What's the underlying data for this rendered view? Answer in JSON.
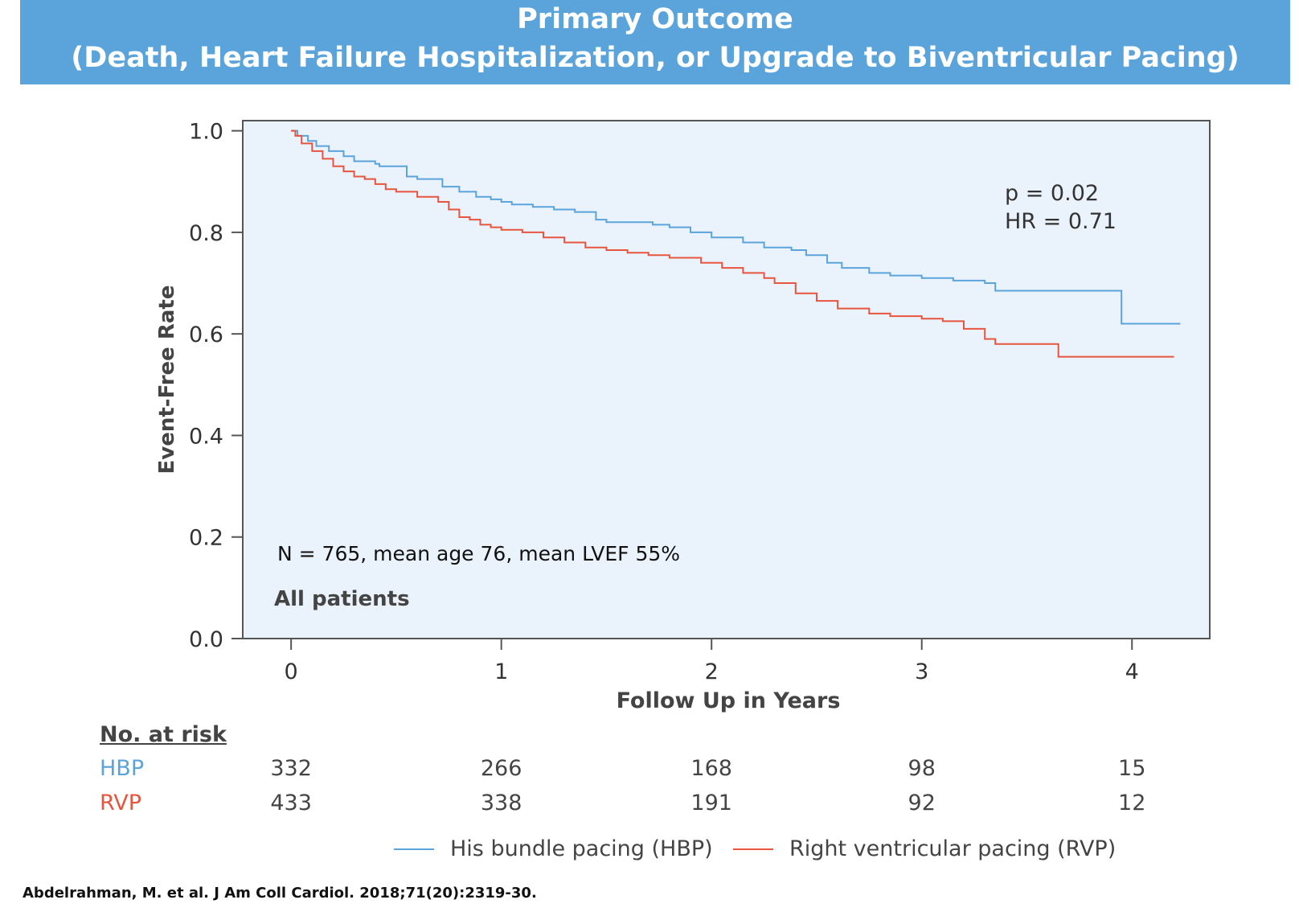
{
  "title": {
    "line1": "Primary Outcome",
    "line2": "(Death, Heart Failure Hospitalization, or  Upgrade to Biventricular Pacing)"
  },
  "colors": {
    "hbp": "#5ba4db",
    "rvp": "#e8553e",
    "plot_bg": "#eaf2fb",
    "title_bg": "#5ba4db"
  },
  "chart_data": {
    "type": "line",
    "step": true,
    "xlabel": "Follow Up in Years",
    "ylabel": "Event-Free Rate",
    "xlim": [
      -0.23,
      4.37
    ],
    "ylim": [
      0,
      1.02
    ],
    "xticks": [
      0,
      1,
      2,
      3,
      4
    ],
    "xtick_labels": [
      "0",
      "1",
      "2",
      "3",
      "4"
    ],
    "yticks": [
      0,
      0.2,
      0.4,
      0.6,
      0.8,
      1.0
    ],
    "ytick_labels": [
      "0.0",
      "0.2",
      "0.4",
      "0.6",
      "0.8",
      "1.0"
    ],
    "annotations": {
      "p": "p = 0.02",
      "hr": "HR = 0.71",
      "cohort": "N = 765, mean age 76, mean LVEF 55%",
      "subset": "All patients"
    },
    "series": [
      {
        "name": "His bundle pacing (HBP)",
        "x": [
          0,
          0.03,
          0.08,
          0.12,
          0.18,
          0.25,
          0.3,
          0.4,
          0.42,
          0.55,
          0.6,
          0.72,
          0.8,
          0.88,
          0.95,
          1.0,
          1.05,
          1.15,
          1.25,
          1.35,
          1.45,
          1.5,
          1.6,
          1.72,
          1.8,
          1.9,
          2.0,
          2.15,
          2.25,
          2.38,
          2.45,
          2.55,
          2.62,
          2.75,
          2.85,
          3.0,
          3.15,
          3.3,
          3.35,
          3.92,
          3.95,
          4.23
        ],
        "y": [
          1.0,
          0.99,
          0.98,
          0.97,
          0.96,
          0.95,
          0.94,
          0.935,
          0.93,
          0.91,
          0.905,
          0.89,
          0.88,
          0.87,
          0.865,
          0.86,
          0.855,
          0.85,
          0.845,
          0.84,
          0.825,
          0.82,
          0.82,
          0.815,
          0.81,
          0.8,
          0.79,
          0.78,
          0.77,
          0.765,
          0.755,
          0.74,
          0.73,
          0.72,
          0.715,
          0.71,
          0.705,
          0.7,
          0.685,
          0.685,
          0.62,
          0.62
        ]
      },
      {
        "name": "Right ventricular pacing (RVP)",
        "x": [
          0,
          0.02,
          0.05,
          0.1,
          0.15,
          0.2,
          0.25,
          0.3,
          0.35,
          0.4,
          0.45,
          0.5,
          0.6,
          0.7,
          0.75,
          0.8,
          0.85,
          0.9,
          0.95,
          1.0,
          1.1,
          1.2,
          1.3,
          1.4,
          1.5,
          1.6,
          1.7,
          1.8,
          1.95,
          2.05,
          2.15,
          2.25,
          2.3,
          2.4,
          2.5,
          2.6,
          2.75,
          2.85,
          3.0,
          3.1,
          3.2,
          3.3,
          3.35,
          3.65,
          4.2
        ],
        "y": [
          1.0,
          0.99,
          0.975,
          0.96,
          0.945,
          0.93,
          0.92,
          0.91,
          0.905,
          0.895,
          0.885,
          0.88,
          0.87,
          0.86,
          0.845,
          0.83,
          0.825,
          0.815,
          0.81,
          0.805,
          0.8,
          0.79,
          0.78,
          0.77,
          0.765,
          0.76,
          0.755,
          0.75,
          0.74,
          0.73,
          0.72,
          0.71,
          0.7,
          0.68,
          0.665,
          0.65,
          0.64,
          0.635,
          0.63,
          0.625,
          0.61,
          0.59,
          0.58,
          0.555,
          0.555
        ]
      }
    ],
    "risk_table": {
      "header": "No. at risk",
      "rows": [
        {
          "label": "HBP",
          "values": [
            "332",
            "266",
            "168",
            "98",
            "15"
          ]
        },
        {
          "label": "RVP",
          "values": [
            "433",
            "338",
            "191",
            "92",
            "12"
          ]
        }
      ]
    },
    "legend": [
      "His bundle pacing (HBP)",
      "Right ventricular pacing (RVP)"
    ],
    "legend_position": "bottom"
  },
  "citation": "Abdelrahman, M. et al. J Am Coll Cardiol. 2018;71(20):2319-30."
}
